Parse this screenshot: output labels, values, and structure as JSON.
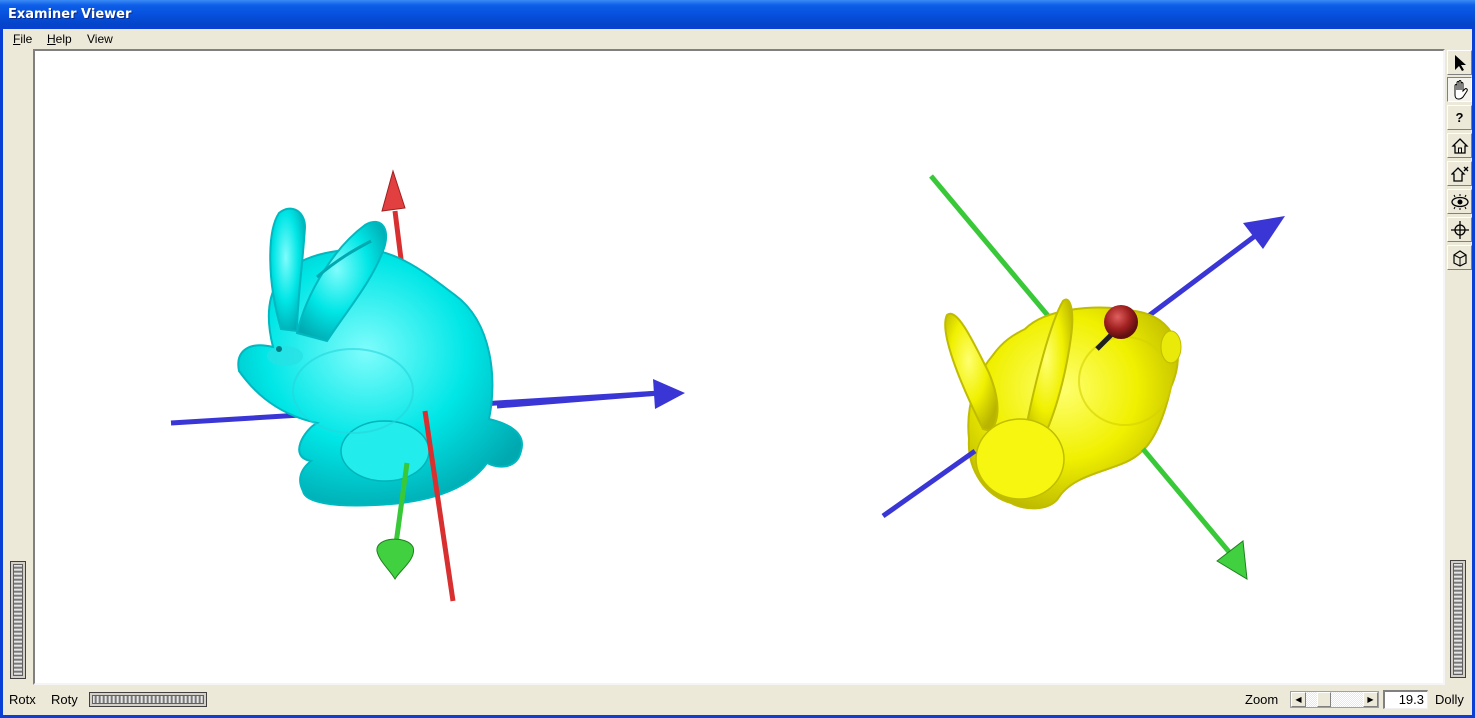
{
  "window": {
    "title": "Examiner Viewer"
  },
  "menu": {
    "file": {
      "accel": "F",
      "rest": "ile"
    },
    "help": {
      "accel": "H",
      "rest": "elp"
    },
    "view": {
      "label": "View"
    }
  },
  "toolbar": {
    "buttons": [
      {
        "name": "pick-mode",
        "icon": "arrow-cursor-icon"
      },
      {
        "name": "view-mode",
        "icon": "hand-icon",
        "pressed": true
      },
      {
        "name": "help",
        "icon": "question-icon",
        "label": "?"
      },
      {
        "name": "home",
        "icon": "home-icon"
      },
      {
        "name": "set-home",
        "icon": "set-home-icon"
      },
      {
        "name": "view-all",
        "icon": "eye-icon"
      },
      {
        "name": "seek",
        "icon": "crosshair-icon"
      },
      {
        "name": "projection",
        "icon": "perspective-cube-icon"
      }
    ]
  },
  "controls": {
    "rotx_label": "Rotx",
    "roty_label": "Roty",
    "zoom_label": "Zoom",
    "zoom_value": "19.3",
    "dolly_label": "Dolly"
  },
  "scene": {
    "models": [
      {
        "name": "bunny-left",
        "color": "#00e6e6"
      },
      {
        "name": "bunny-right",
        "color": "#f0f000"
      }
    ],
    "axis_colors": {
      "x": "#3a36d6",
      "y": "#e03a3a",
      "z": "#3ad63a"
    },
    "marker_color": "#a02020"
  }
}
